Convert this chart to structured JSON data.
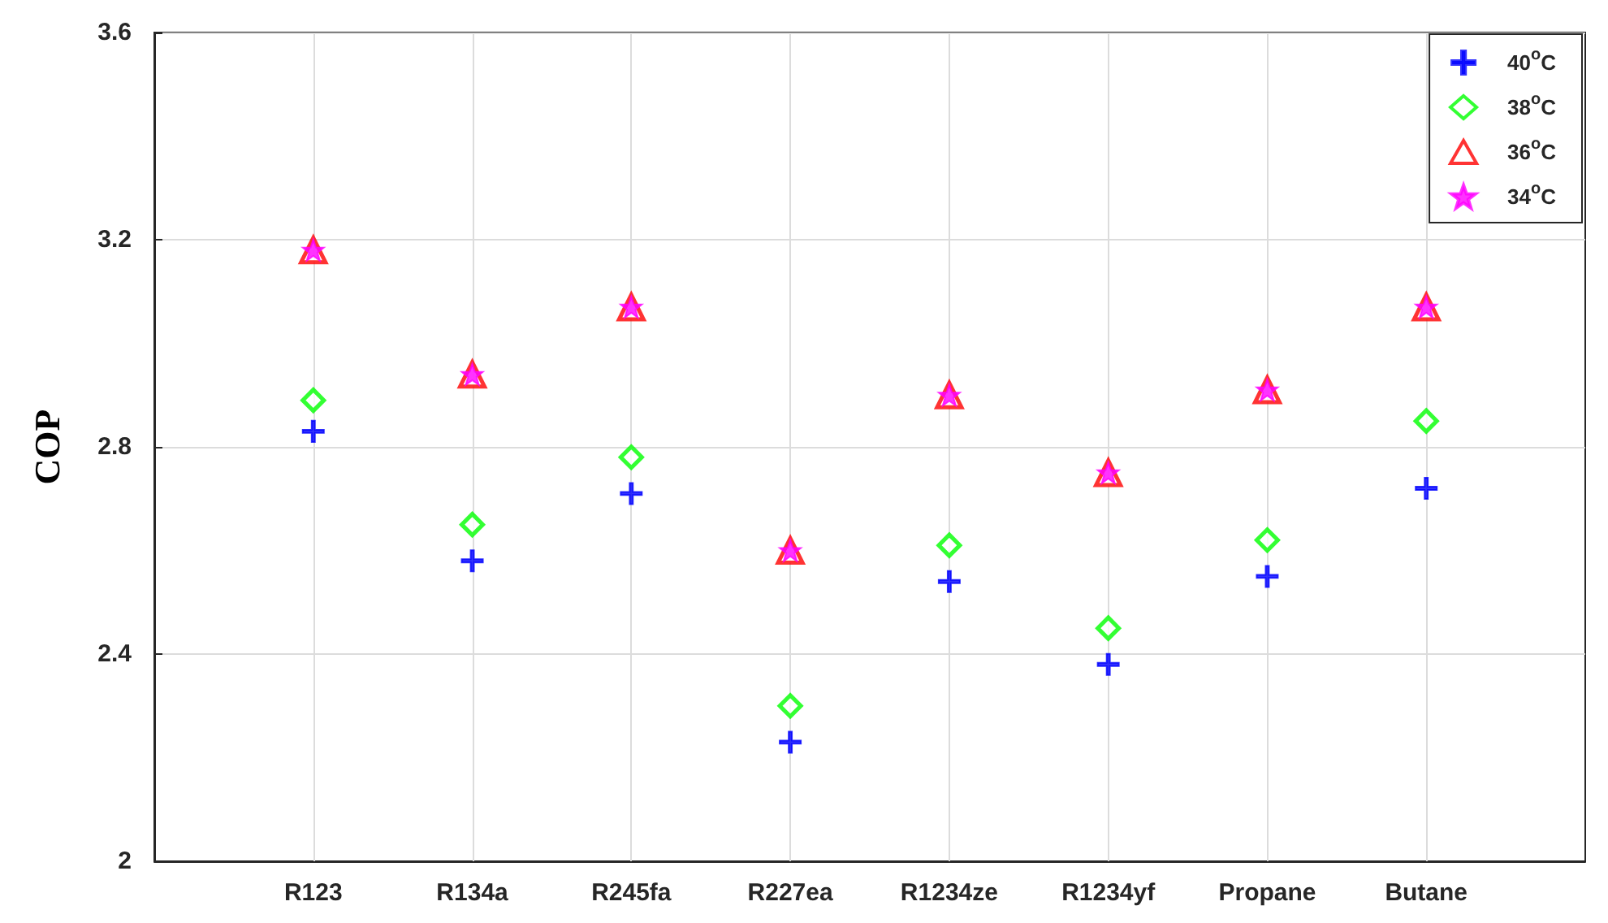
{
  "chart_data": {
    "type": "scatter",
    "ylabel": "COP",
    "categories": [
      "R123",
      "R134a",
      "R245fa",
      "R227ea",
      "R1234ze",
      "R1234yf",
      "Propane",
      "Butane"
    ],
    "series": [
      {
        "name": "40$^{o}$C",
        "color": "#0000ff",
        "marker": "cross",
        "values": [
          2.83,
          2.58,
          2.71,
          2.23,
          2.54,
          2.38,
          2.55,
          2.72
        ]
      },
      {
        "name": "38$^{o}$C",
        "color": "#00ff00",
        "marker": "diamond",
        "values": [
          2.89,
          2.65,
          2.78,
          2.3,
          2.61,
          2.45,
          2.62,
          2.85
        ]
      },
      {
        "name": "36$^{o}$C",
        "color": "#ff0000",
        "marker": "triangle",
        "values": [
          3.18,
          2.94,
          3.07,
          2.6,
          2.9,
          2.75,
          2.91,
          3.07
        ]
      },
      {
        "name": "34$^{o}$C",
        "color": "#ff00ff",
        "marker": "star",
        "values": [
          3.18,
          2.94,
          3.07,
          2.6,
          2.9,
          2.75,
          2.91,
          3.07
        ]
      }
    ],
    "ylim": [
      2,
      3.6
    ],
    "yticks": [
      2,
      2.4,
      2.8,
      3.2,
      3.6
    ],
    "grid": true,
    "legend": "top right"
  }
}
